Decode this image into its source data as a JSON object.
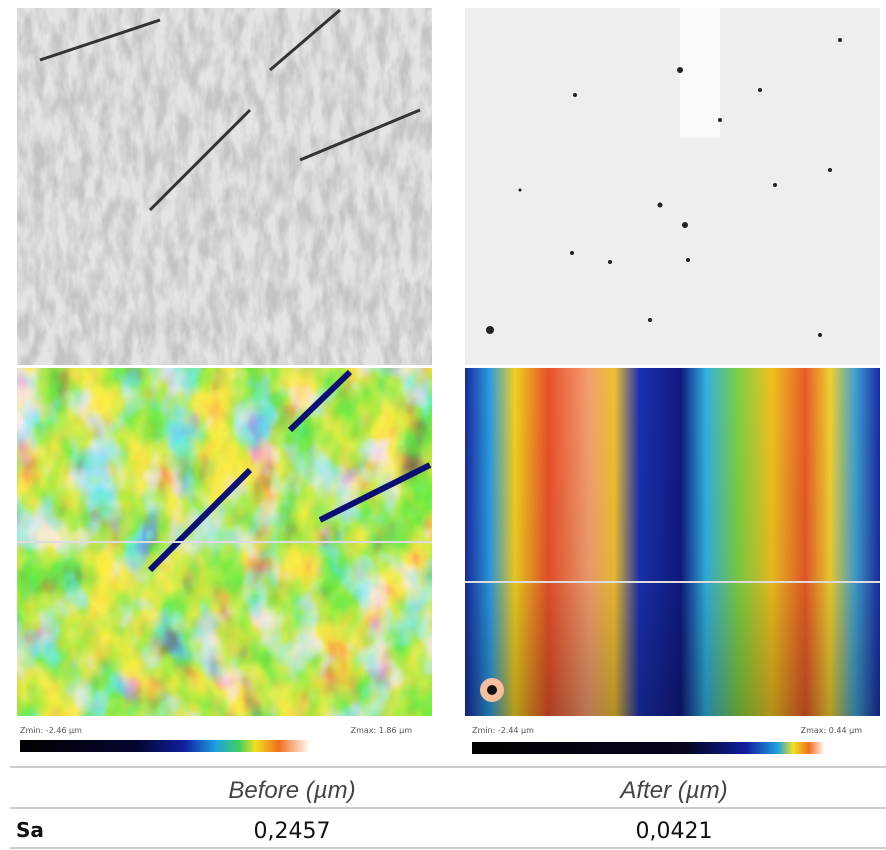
{
  "panels": [
    {
      "zmin_label": "Zmin: -2.46 µm",
      "zmax_label": "Zmax: 1.86 µm"
    },
    {
      "zmin_label": "Zmin: -2.44 µm",
      "zmax_label": "Zmax: 0.44 µm"
    }
  ],
  "table": {
    "header": [
      "Before (µm)",
      "After (µm)"
    ],
    "rows": [
      [
        "Sa",
        "0,2457",
        "0,0421"
      ]
    ]
  }
}
